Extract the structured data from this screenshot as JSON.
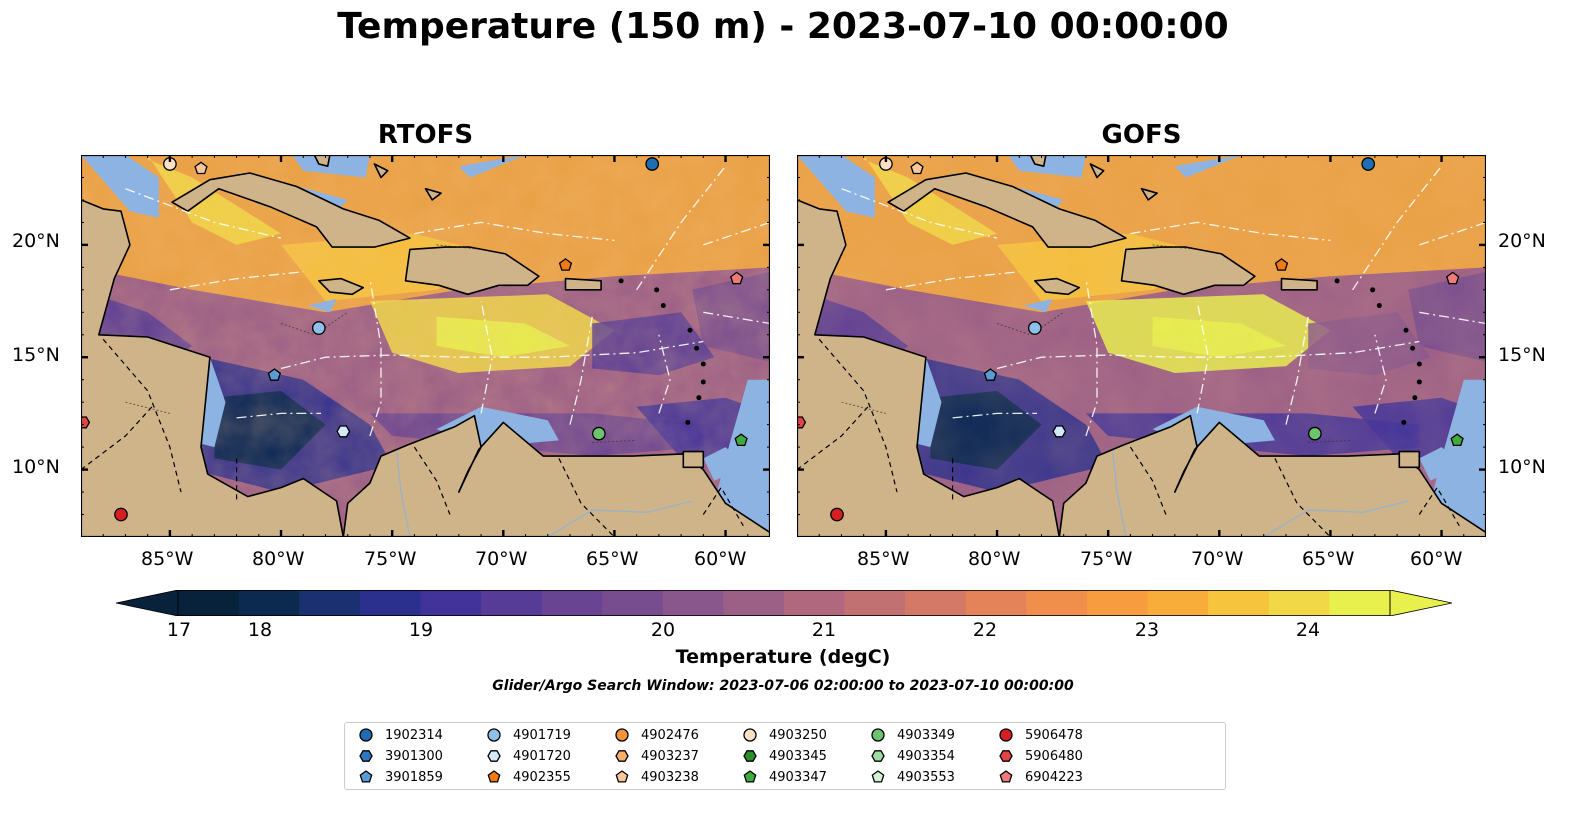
{
  "title": "Temperature (150 m) - 2023-07-10 00:00:00",
  "panels": [
    {
      "id": "rtofs",
      "title": "RTOFS"
    },
    {
      "id": "gofs",
      "title": "GOFS"
    }
  ],
  "axes": {
    "lat_ticks": [
      "20°N",
      "15°N",
      "10°N"
    ],
    "lon_ticks": [
      "85°W",
      "80°W",
      "75°W",
      "70°W",
      "65°W",
      "60°W"
    ],
    "lon_range": [
      -89,
      -58
    ],
    "lat_range": [
      7,
      24
    ]
  },
  "colorbar": {
    "label": "Temperature (degC)",
    "ticks": [
      "17",
      "18",
      "19",
      "20",
      "21",
      "22",
      "23",
      "24"
    ],
    "range": [
      16.75,
      24.5
    ],
    "colors": [
      "#07223a",
      "#0c2a4f",
      "#1a3070",
      "#2b2f8e",
      "#41339a",
      "#563b97",
      "#684493",
      "#784d90",
      "#8a578c",
      "#9c5f86",
      "#b0687e",
      "#c27173",
      "#d47968",
      "#e4835a",
      "#f08f4c",
      "#f79d3f",
      "#f8ad3b",
      "#f6c43d",
      "#f0d846",
      "#e8f04e"
    ]
  },
  "search_window": "Glider/Argo Search Window: 2023-07-06 02:00:00 to 2023-07-10 00:00:00",
  "legend": [
    {
      "label": "1902314",
      "shape": "circle",
      "color": "#1f6eb4"
    },
    {
      "label": "3901300",
      "shape": "hexagon",
      "color": "#2e78c0"
    },
    {
      "label": "3901859",
      "shape": "pentagon",
      "color": "#5b9bd5"
    },
    {
      "label": "4901719",
      "shape": "circle",
      "color": "#8ec1e8"
    },
    {
      "label": "4901720",
      "shape": "hexagon",
      "color": "#d4e9f7"
    },
    {
      "label": "4902355",
      "shape": "pentagon",
      "color": "#f07b10"
    },
    {
      "label": "4902476",
      "shape": "circle",
      "color": "#f4933a"
    },
    {
      "label": "4903237",
      "shape": "hexagon",
      "color": "#f6ae6c"
    },
    {
      "label": "4903238",
      "shape": "pentagon",
      "color": "#f9c79a"
    },
    {
      "label": "4903250",
      "shape": "circle",
      "color": "#fbe0c8"
    },
    {
      "label": "4903345",
      "shape": "hexagon",
      "color": "#2a8f2a"
    },
    {
      "label": "4903347",
      "shape": "pentagon",
      "color": "#3faa3f"
    },
    {
      "label": "4903349",
      "shape": "circle",
      "color": "#6cc46c"
    },
    {
      "label": "4903354",
      "shape": "hexagon",
      "color": "#9fdc9f"
    },
    {
      "label": "4903553",
      "shape": "pentagon",
      "color": "#d6f2d6"
    },
    {
      "label": "5906478",
      "shape": "circle",
      "color": "#d62020"
    },
    {
      "label": "5906480",
      "shape": "hexagon",
      "color": "#e04545"
    },
    {
      "label": "6904223",
      "shape": "pentagon",
      "color": "#f07a7a"
    }
  ],
  "markers": [
    {
      "label": "1902314",
      "lon": -63.3,
      "lat": 23.6
    },
    {
      "label": "4901719",
      "lon": -78.3,
      "lat": 16.3
    },
    {
      "label": "3901859",
      "lon": -80.3,
      "lat": 14.2
    },
    {
      "label": "4901720",
      "lon": -77.2,
      "lat": 11.7
    },
    {
      "label": "4902355",
      "lon": -67.2,
      "lat": 19.1
    },
    {
      "label": "6904223",
      "lon": -59.5,
      "lat": 18.5
    },
    {
      "label": "4903349",
      "lon": -65.7,
      "lat": 11.6
    },
    {
      "label": "4903347",
      "lon": -59.3,
      "lat": 11.3
    },
    {
      "label": "5906480",
      "lon": -88.9,
      "lat": 12.1
    },
    {
      "label": "5906478",
      "lon": -87.2,
      "lat": 8.0
    },
    {
      "label": "4903250",
      "lon": -85.0,
      "lat": 23.6
    },
    {
      "label": "4903238",
      "lon": -83.6,
      "lat": 23.4
    }
  ]
}
